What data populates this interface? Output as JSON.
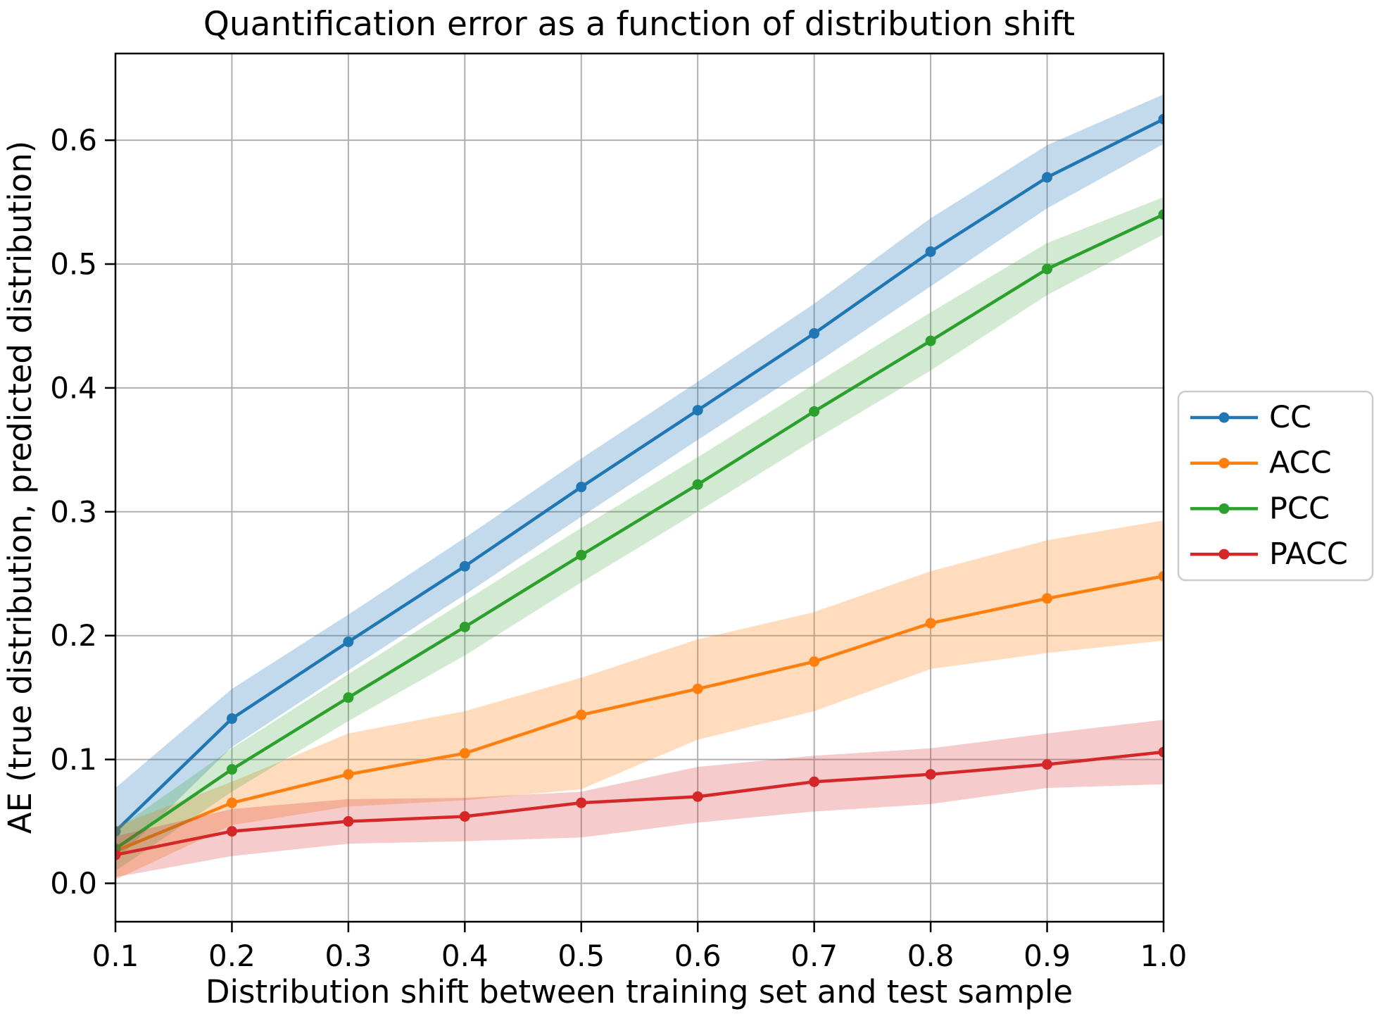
{
  "figure": {
    "background": "#ffffff"
  },
  "chart_data": {
    "type": "line",
    "title": "Quantification error as a function of distribution shift",
    "xlabel": "Distribution shift between training set and test sample",
    "ylabel": "AE (true distribution, predicted distribution)",
    "grid": true,
    "legend_position": "right-outside",
    "xlim": [
      0.1,
      1.0
    ],
    "ylim": [
      -0.031,
      0.67
    ],
    "xticks": [
      0.1,
      0.2,
      0.3,
      0.4,
      0.5,
      0.6,
      0.7,
      0.8,
      0.9,
      1.0
    ],
    "yticks": [
      0.0,
      0.1,
      0.2,
      0.3,
      0.4,
      0.5,
      0.6
    ],
    "x": [
      0.1,
      0.2,
      0.3,
      0.4,
      0.5,
      0.6,
      0.7,
      0.8,
      0.9,
      1.0
    ],
    "series": [
      {
        "name": "CC",
        "color": "#1f77b4",
        "band_opacity": 0.27,
        "values": [
          0.042,
          0.133,
          0.195,
          0.256,
          0.32,
          0.382,
          0.444,
          0.51,
          0.57,
          0.617
        ],
        "band_lower": [
          0.018,
          0.11,
          0.172,
          0.233,
          0.296,
          0.358,
          0.419,
          0.482,
          0.545,
          0.597
        ],
        "band_upper": [
          0.077,
          0.157,
          0.217,
          0.279,
          0.343,
          0.405,
          0.468,
          0.537,
          0.596,
          0.637
        ]
      },
      {
        "name": "ACC",
        "color": "#ff7f0e",
        "band_opacity": 0.27,
        "values": [
          0.026,
          0.065,
          0.088,
          0.105,
          0.136,
          0.157,
          0.179,
          0.21,
          0.23,
          0.248
        ],
        "band_lower": [
          0.003,
          0.047,
          0.062,
          0.067,
          0.076,
          0.116,
          0.139,
          0.173,
          0.186,
          0.196
        ],
        "band_upper": [
          0.046,
          0.082,
          0.121,
          0.139,
          0.166,
          0.197,
          0.219,
          0.252,
          0.277,
          0.293
        ]
      },
      {
        "name": "PCC",
        "color": "#2ca02c",
        "band_opacity": 0.22,
        "values": [
          0.028,
          0.092,
          0.15,
          0.207,
          0.265,
          0.322,
          0.381,
          0.438,
          0.496,
          0.54
        ],
        "band_lower": [
          0.01,
          0.074,
          0.131,
          0.184,
          0.243,
          0.3,
          0.358,
          0.414,
          0.475,
          0.524
        ],
        "band_upper": [
          0.043,
          0.109,
          0.169,
          0.228,
          0.287,
          0.344,
          0.403,
          0.461,
          0.517,
          0.554
        ]
      },
      {
        "name": "PACC",
        "color": "#d62728",
        "band_opacity": 0.24,
        "values": [
          0.023,
          0.042,
          0.05,
          0.054,
          0.065,
          0.07,
          0.082,
          0.088,
          0.096,
          0.106
        ],
        "band_lower": [
          0.005,
          0.022,
          0.032,
          0.034,
          0.037,
          0.049,
          0.058,
          0.064,
          0.077,
          0.08
        ],
        "band_upper": [
          0.038,
          0.06,
          0.068,
          0.069,
          0.074,
          0.094,
          0.103,
          0.109,
          0.121,
          0.132
        ]
      }
    ],
    "styles": {
      "grid_color": "#b0b0b0",
      "spine_color": "#000000",
      "text_color": "#000000",
      "legend_border_color": "#cccccc",
      "legend_background": "#ffffff"
    }
  }
}
